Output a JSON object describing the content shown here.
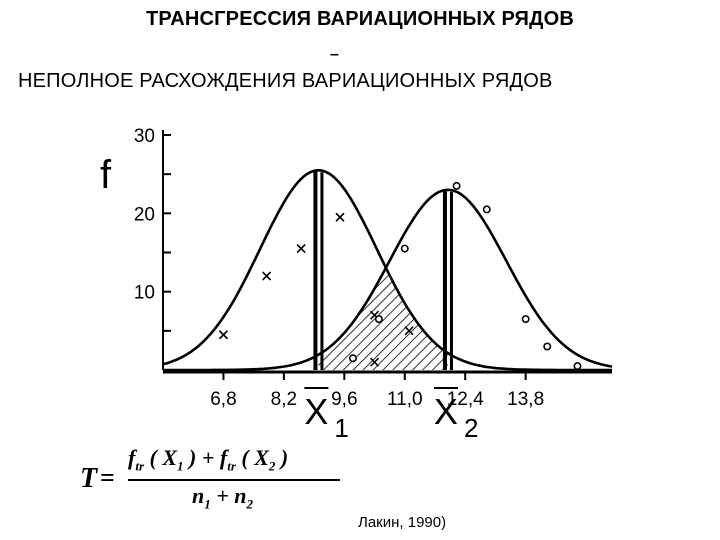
{
  "header": {
    "title": "ТРАНСГРЕССИЯ ВАРИАЦИОННЫХ РЯДОВ",
    "dash": "–",
    "subtitle": "НЕПОЛНОЕ РАСХОЖДЕНИЯ ВАРИАЦИОННЫХ РЯДОВ"
  },
  "chart_data": {
    "type": "line",
    "ylabel": "f",
    "ylim": [
      0,
      30
    ],
    "xlim": [
      5.4,
      15.8
    ],
    "y_ticks": [
      10,
      20,
      30
    ],
    "x_ticks": [
      "6,8",
      "8,2",
      "9,6",
      "11,0",
      "12,4",
      "13,8"
    ],
    "x_tick_values": [
      6.8,
      8.2,
      9.6,
      11.0,
      12.4,
      13.8
    ],
    "series": [
      {
        "marker": "x",
        "curve": {
          "mean": 9.0,
          "sd": 1.35,
          "peak": 25.5
        },
        "points": [
          [
            6.8,
            4.5
          ],
          [
            7.8,
            12.0
          ],
          [
            8.6,
            15.5
          ],
          [
            9.5,
            19.5
          ],
          [
            10.3,
            7.0
          ],
          [
            10.3,
            1.0
          ],
          [
            11.1,
            5.0
          ]
        ]
      },
      {
        "marker": "o",
        "curve": {
          "mean": 12.0,
          "sd": 1.35,
          "peak": 23.0
        },
        "points": [
          [
            9.8,
            1.5
          ],
          [
            10.4,
            6.5
          ],
          [
            11.0,
            15.5
          ],
          [
            12.2,
            23.5
          ],
          [
            12.9,
            20.5
          ],
          [
            13.8,
            6.5
          ],
          [
            14.3,
            3.0
          ],
          [
            15.0,
            0.5
          ]
        ]
      }
    ],
    "means": [
      {
        "label": "X",
        "sub": "1",
        "x": 9.0
      },
      {
        "label": "X",
        "sub": "2",
        "x": 12.0
      }
    ]
  },
  "formula": {
    "lhs": "T",
    "eq": "=",
    "num_a": "f",
    "num_a_sub": "tr",
    "num_b": "( X",
    "num_b_sub": "1",
    "num_c": " ) + f",
    "num_c_sub": "tr",
    "num_d": "( X",
    "num_d_sub": "2",
    "num_e": " )",
    "den_a": "n",
    "den_a_sub": "1",
    "den_b": " + n",
    "den_b_sub": "2"
  },
  "credit": "Лакин, 1990)"
}
